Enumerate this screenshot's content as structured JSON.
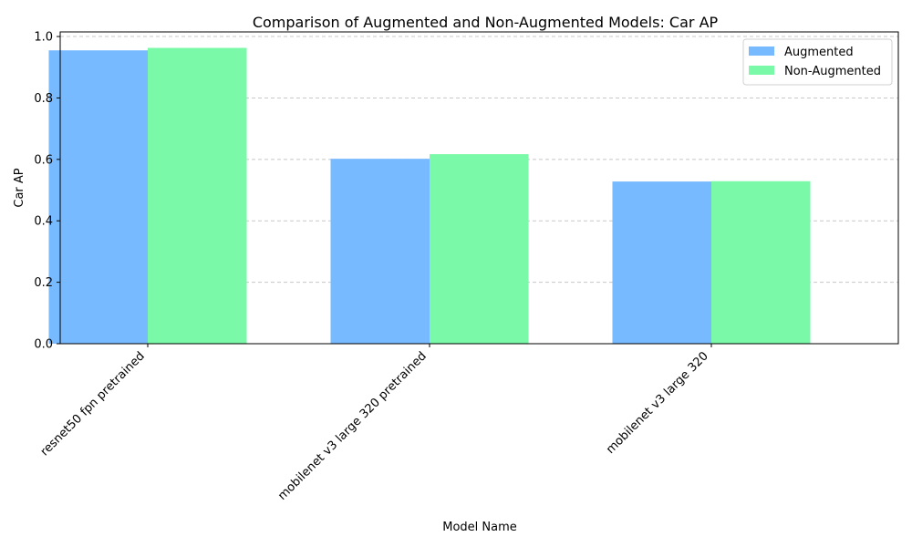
{
  "chart_data": {
    "type": "bar",
    "title": "Comparison of Augmented and Non-Augmented Models: Car AP",
    "xlabel": "Model Name",
    "ylabel": "Car AP",
    "categories": [
      "resnet50 fpn pretrained",
      "mobilenet v3 large 320 pretrained",
      "mobilenet v3 large 320"
    ],
    "series": [
      {
        "name": "Augmented",
        "color": "#78baff",
        "values": [
          0.955,
          0.602,
          0.528
        ]
      },
      {
        "name": "Non-Augmented",
        "color": "#7afaa8",
        "values": [
          0.963,
          0.617,
          0.529
        ]
      }
    ],
    "ylim": [
      0,
      1.015
    ],
    "yticks": [
      "0.0",
      "0.2",
      "0.4",
      "0.6",
      "0.8",
      "1.0"
    ],
    "grid": "y-dashed",
    "legend_position": "top-right"
  }
}
